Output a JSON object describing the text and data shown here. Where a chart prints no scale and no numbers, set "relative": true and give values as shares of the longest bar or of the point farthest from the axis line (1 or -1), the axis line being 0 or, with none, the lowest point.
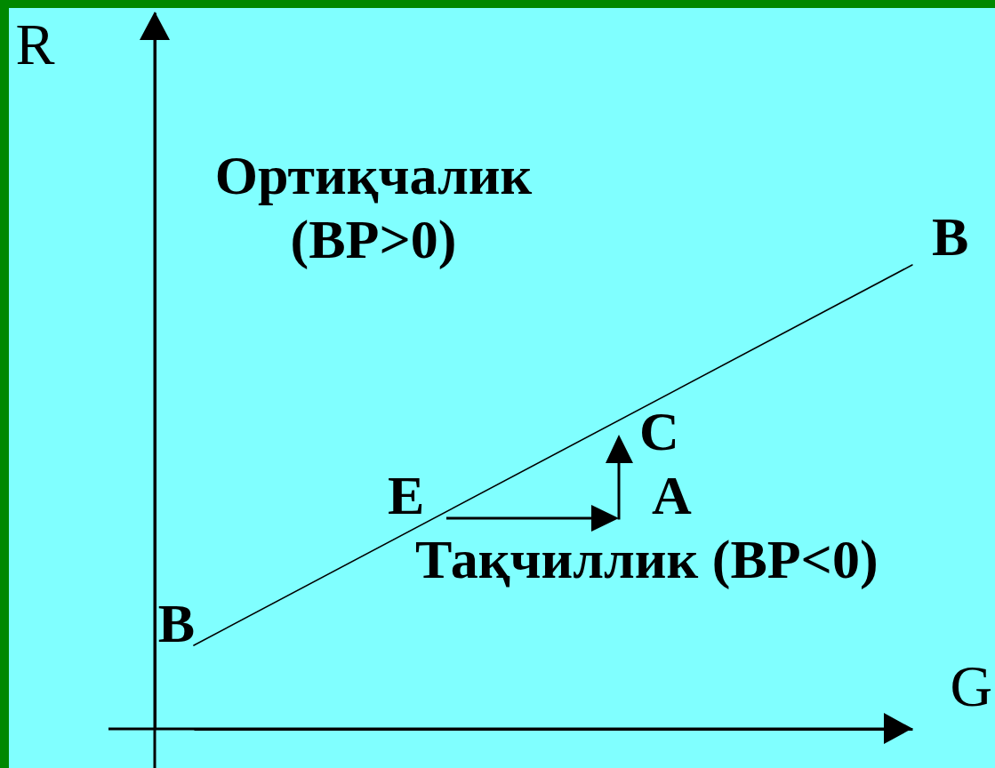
{
  "chart_data": {
    "type": "line",
    "relative": true,
    "xlabel": "G",
    "ylabel": "R",
    "categories": [
      null,
      null
    ],
    "series": [
      {
        "name": "B",
        "color": "#000000",
        "values": [
          0.18,
          1
        ]
      }
    ],
    "annotations": [
      "Ортиқчалик (BP>0)",
      "C",
      "E",
      "A",
      "Тақчиллик (BP<0)"
    ]
  }
}
